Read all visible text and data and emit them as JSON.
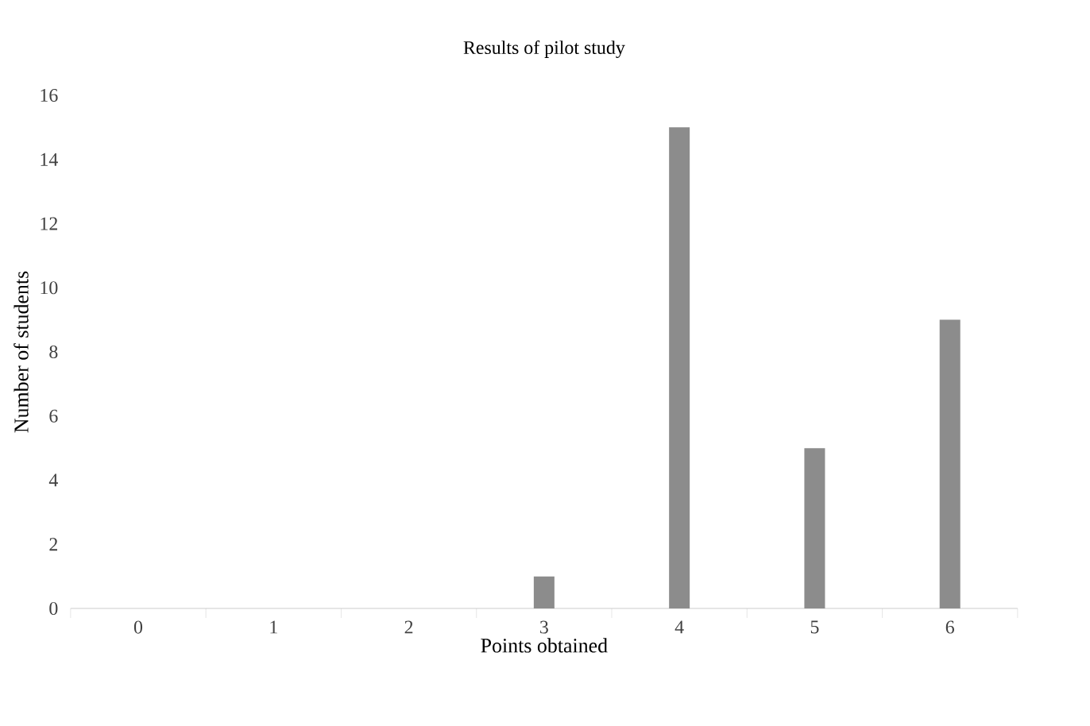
{
  "chart_data": {
    "type": "bar",
    "title": "Results of pilot study",
    "xlabel": "Points obtained",
    "ylabel": "Number of students",
    "categories": [
      "0",
      "1",
      "2",
      "3",
      "4",
      "5",
      "6"
    ],
    "values": [
      0,
      0,
      0,
      1,
      15,
      5,
      9
    ],
    "color": "#8c8c8c",
    "ylim": [
      0,
      16
    ],
    "yticks": [
      0,
      2,
      4,
      6,
      8,
      10,
      12,
      14,
      16
    ]
  }
}
